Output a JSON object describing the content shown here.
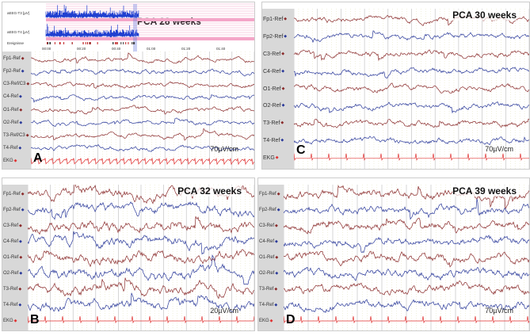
{
  "panels": [
    {
      "id": "A",
      "letter": "A",
      "title": "PCA 28 weeks",
      "scale": "70µV/cm",
      "channels": [
        "Fp1-Ref",
        "Fp2-Ref",
        "C3-Ref/C3",
        "C4-Ref",
        "O1-Ref",
        "O2-Ref",
        "T3-Ref/C3",
        "T4-Ref",
        "EKG"
      ],
      "aeeg": {
        "rows": [
          "aEEG-T3 [µV]",
          "aEEG-T4 [µV]",
          "Ereignisse"
        ],
        "times": [
          "00:00",
          "00:20",
          "00:40",
          "01:00",
          "01:20",
          "01:40"
        ]
      }
    },
    {
      "id": "C",
      "letter": "C",
      "title": "PCA  30 weeks",
      "scale": "70µV/cm",
      "channels": [
        "Fp1-Ref",
        "Fp2-Ref",
        "C3-Ref",
        "C4-Ref",
        "O1-Ref",
        "O2-Ref",
        "T3-Ref",
        "T4-Ref",
        "EKG"
      ]
    },
    {
      "id": "B",
      "letter": "B",
      "title": "PCA 32 weeks",
      "scale": "20µV/cm",
      "channels": [
        "Fp1-Ref",
        "Fp2-Ref",
        "C3-Ref",
        "C4-Ref",
        "O1-Ref",
        "O2-Ref",
        "T3-Ref",
        "T4-Ref",
        "EKG"
      ]
    },
    {
      "id": "D",
      "letter": "D",
      "title": "PCA 39 weeks",
      "scale": "70µV/cm",
      "channels": [
        "Fp1-Ref",
        "Fp2-Ref",
        "C3-Ref",
        "C4-Ref",
        "O1-Ref",
        "O2-Ref",
        "T3-Ref",
        "T4-Ref",
        "EKG"
      ]
    }
  ],
  "colors": {
    "red_trace": "#8a2b2b",
    "blue_trace": "#2b3a9a",
    "ekg": "#e03030",
    "aeeg": "#1f3fd0",
    "pink": "#f4a6c8"
  }
}
